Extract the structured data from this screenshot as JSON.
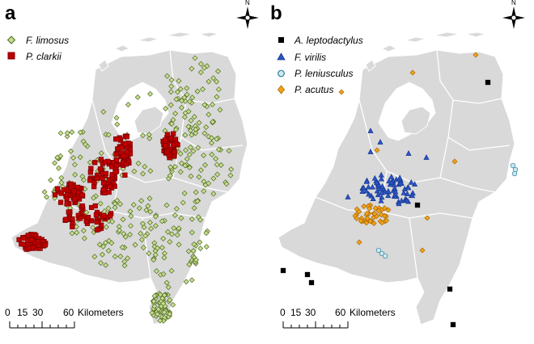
{
  "panels": [
    {
      "letter": "a",
      "legend": [
        {
          "label": "F. limosus",
          "marker": "diamond",
          "fill": "#c9dc91",
          "stroke": "#4d6b23"
        },
        {
          "label": "P. clarkii",
          "marker": "square",
          "fill": "#c00000",
          "stroke": "#7a0000"
        }
      ],
      "scale": {
        "ticks": [
          "0",
          "15",
          "30",
          "60"
        ],
        "unit": "Kilometers"
      },
      "compass": "N"
    },
    {
      "letter": "b",
      "legend": [
        {
          "label": "A. leptodactylus",
          "marker": "square",
          "fill": "#000000",
          "stroke": "#000000"
        },
        {
          "label": "F. virilis",
          "marker": "triangle",
          "fill": "#2a55c8",
          "stroke": "#1a3a8f"
        },
        {
          "label": "P. leniusculus",
          "marker": "circle",
          "fill": "#cfe8f0",
          "stroke": "#2a7f9a"
        },
        {
          "label": "P. acutus",
          "marker": "diamond",
          "fill": "#f3a21a",
          "stroke": "#a86800"
        }
      ],
      "scale": {
        "ticks": [
          "0",
          "15",
          "30",
          "60"
        ],
        "unit": "Kilometers"
      },
      "compass": "N"
    }
  ],
  "colors": {
    "land": "#d9d9d9",
    "border": "#ffffff",
    "water": "#ffffff"
  }
}
